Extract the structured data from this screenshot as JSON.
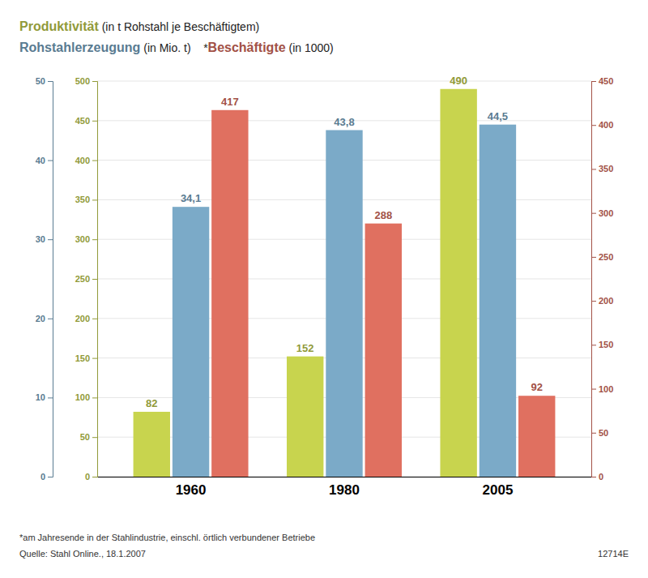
{
  "chart_data": {
    "type": "bar",
    "title": "Produktivität (in t Rohstahl je Beschäftigtem)",
    "subtitle": "Rohstahlerzeugung (in Mio. t)    *Beschäftigte (in 1000)",
    "categories": [
      "1960",
      "1980",
      "2005"
    ],
    "series": [
      {
        "name": "Produktivität",
        "color": "#c8d44e",
        "axis": "y",
        "values": [
          82,
          152,
          490
        ]
      },
      {
        "name": "Rohstahlerzeugung",
        "color": "#7baac8",
        "axis": "y3",
        "values": [
          34.1,
          43.8,
          44.5
        ],
        "value_labels": [
          "34,1",
          "43,8",
          "44,5"
        ]
      },
      {
        "name": "Beschäftigte",
        "color": "#e07060",
        "axis": "y2",
        "values": [
          417,
          288,
          92
        ]
      }
    ],
    "ylim": [
      0,
      500
    ],
    "yticks": [
      0,
      50,
      100,
      150,
      200,
      250,
      300,
      350,
      400,
      450,
      500
    ],
    "y3lim": [
      0,
      50
    ],
    "y3ticks": [
      0,
      10,
      20,
      30,
      40,
      50
    ],
    "y2lim": [
      0,
      450
    ],
    "y2ticks": [
      0,
      50,
      100,
      150,
      200,
      250,
      300,
      350,
      400,
      450
    ],
    "grid": true,
    "data_labels": true,
    "annotations": [
      "*am Jahresende in der Stahlindustrie, einschl. örtlich verbundener Betriebe",
      "Quelle: Stahl Online., 18.1.2007",
      "12714E"
    ]
  }
}
